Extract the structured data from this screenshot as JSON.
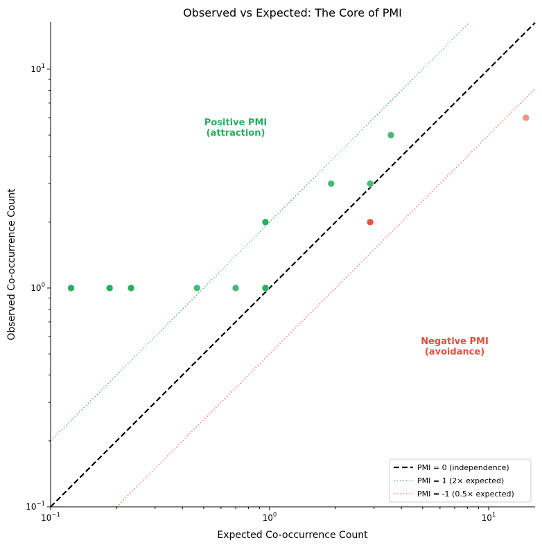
{
  "chart_data": {
    "type": "scatter",
    "title": "Observed vs Expected: The Core of PMI",
    "xlabel": "Expected Co-occurrence Count",
    "ylabel": "Observed Co-occurrence Count",
    "xscale": "log",
    "yscale": "log",
    "xlim": [
      0.1,
      16.3
    ],
    "ylim": [
      0.1,
      16.4
    ],
    "grid": false,
    "xticks": [
      {
        "value": 0.1,
        "label": "10",
        "exp": "−1"
      },
      {
        "value": 1,
        "label": "10",
        "exp": "0"
      },
      {
        "value": 10,
        "label": "10",
        "exp": "1"
      }
    ],
    "yticks": [
      {
        "value": 0.1,
        "label": "10",
        "exp": "−1"
      },
      {
        "value": 1,
        "label": "10",
        "exp": "0"
      },
      {
        "value": 10,
        "label": "10",
        "exp": "1"
      }
    ],
    "points": [
      {
        "x": 0.124,
        "y": 1,
        "class": "positive",
        "alpha": 1.0
      },
      {
        "x": 0.186,
        "y": 1,
        "class": "positive",
        "alpha": 1.0
      },
      {
        "x": 0.233,
        "y": 1,
        "class": "positive",
        "alpha": 1.0
      },
      {
        "x": 0.466,
        "y": 1,
        "class": "positive",
        "alpha": 0.85
      },
      {
        "x": 0.7,
        "y": 1,
        "class": "positive",
        "alpha": 0.85
      },
      {
        "x": 0.957,
        "y": 1,
        "class": "positive",
        "alpha": 1.0
      },
      {
        "x": 0.957,
        "y": 2,
        "class": "positive",
        "alpha": 1.0
      },
      {
        "x": 1.91,
        "y": 3,
        "class": "positive",
        "alpha": 0.85
      },
      {
        "x": 2.88,
        "y": 3,
        "class": "positive",
        "alpha": 0.85
      },
      {
        "x": 3.58,
        "y": 5,
        "class": "positive",
        "alpha": 0.85
      },
      {
        "x": 2.88,
        "y": 2,
        "class": "negative",
        "alpha": 0.95
      },
      {
        "x": 14.8,
        "y": 6,
        "class": "negative",
        "alpha": 0.6
      }
    ],
    "reference_lines": [
      {
        "name": "PMI = 0 (independence)",
        "multiplier": 1,
        "color": "#000000",
        "style": "dashed"
      },
      {
        "name": "PMI = 1 (2× expected)",
        "multiplier": 2,
        "color": "#5dbb85",
        "style": "dotted"
      },
      {
        "name": "PMI = -1 (0.5× expected)",
        "multiplier": 0.5,
        "color": "#f07a6a",
        "style": "dotted"
      }
    ],
    "legend_position": "bottom-right",
    "annotations": [
      {
        "line1": "Positive PMI",
        "line2": "(attraction)",
        "x": 0.7,
        "y": 5.3,
        "color": "#27ae60"
      },
      {
        "line1": "Negative PMI",
        "line2": "(avoidance)",
        "x": 7,
        "y": 0.53,
        "color": "#e74c3c"
      }
    ],
    "colors": {
      "positive": "#27ae60",
      "negative": "#e74c3c"
    }
  }
}
